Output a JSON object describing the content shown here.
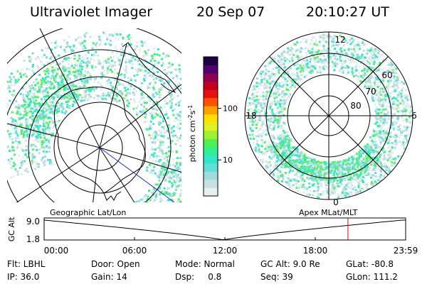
{
  "header": {
    "instrument": "Ultraviolet Imager",
    "date": "20 Sep 07",
    "time": "20:10:27 UT"
  },
  "colorbar": {
    "unit_label": "photon cm",
    "unit_exp1": "-2",
    "unit_s": "s",
    "unit_exp2": "-1",
    "ticks": [
      "100",
      "10"
    ],
    "tick_values": [
      100,
      10
    ],
    "range": [
      2,
      1000
    ],
    "scale": "log",
    "colors": [
      "#e8eff1",
      "#c8e0e4",
      "#a0dcdc",
      "#60e0d8",
      "#30e8c8",
      "#30f090",
      "#50f050",
      "#a0f030",
      "#e0f020",
      "#ffe000",
      "#ffa000",
      "#ff5000",
      "#e81010",
      "#c00020",
      "#900050",
      "#500070",
      "#1c0040"
    ]
  },
  "left_panel": {
    "projection_label": "Geographic Lat/Lon"
  },
  "right_panel": {
    "projection_label": "Apex MLat/MLT",
    "mlt_labels": {
      "top": "12",
      "left": "18",
      "right": "6",
      "bottom": "0"
    },
    "lat_labels": [
      "60",
      "70",
      "80"
    ]
  },
  "altitude_plot": {
    "ylabel": "GC Alt",
    "yticks": [
      "9.0",
      "1.8"
    ],
    "ytick_values": [
      9.0,
      1.8
    ],
    "xticks": [
      "00:00",
      "06:00",
      "12:00",
      "18:00",
      "23:59"
    ],
    "xtick_hours": [
      0,
      6,
      12,
      18,
      24
    ],
    "marker_hour": 20.17,
    "marker_color": "#e00000",
    "perigee_hour": 11.9
  },
  "footer": {
    "rows": [
      [
        "Flt: LBHL",
        "Door: Open",
        "Mode: Normal",
        "GC Alt: 9.0 Re",
        "GLat: -80.8"
      ],
      [
        "IP: 36.0",
        "Gain: 14",
        "Dsp:     0.8",
        "Seq: 39",
        "GLon: 111.2"
      ]
    ]
  }
}
